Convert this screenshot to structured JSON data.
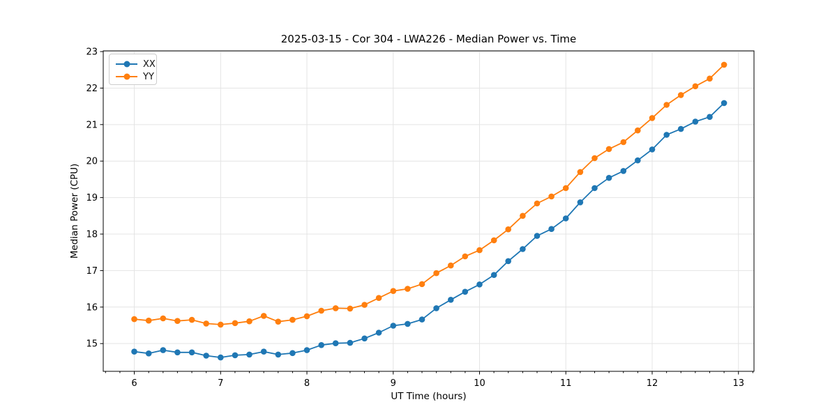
{
  "figure": {
    "background": "#ffffff"
  },
  "chart_data": {
    "type": "line",
    "title": "2025-03-15 - Cor 304 - LWA226 - Median Power vs. Time",
    "xlabel": "UT Time (hours)",
    "ylabel": "Median Power (CPU)",
    "xlim": [
      5.64,
      13.18
    ],
    "ylim": [
      14.24,
      23.02
    ],
    "x_ticks": [
      6,
      7,
      8,
      9,
      10,
      11,
      12,
      13
    ],
    "y_ticks": [
      15,
      16,
      17,
      18,
      19,
      20,
      21,
      22,
      23
    ],
    "x_minor_tick_step_minutes": 10,
    "grid": true,
    "grid_color": "#e4e4e4",
    "axis_color": "#000000",
    "legend_position": "upper-left",
    "x": [
      6.0,
      6.167,
      6.333,
      6.5,
      6.667,
      6.833,
      7.0,
      7.167,
      7.333,
      7.5,
      7.667,
      7.833,
      8.0,
      8.167,
      8.333,
      8.5,
      8.667,
      8.833,
      9.0,
      9.167,
      9.333,
      9.5,
      9.667,
      9.833,
      10.0,
      10.167,
      10.333,
      10.5,
      10.667,
      10.833,
      11.0,
      11.167,
      11.333,
      11.5,
      11.667,
      11.833,
      12.0,
      12.167,
      12.333,
      12.5,
      12.667,
      12.833
    ],
    "series": [
      {
        "name": "XX",
        "color": "#1f77b4",
        "values": [
          14.78,
          14.73,
          14.82,
          14.76,
          14.76,
          14.67,
          14.62,
          14.68,
          14.7,
          14.78,
          14.7,
          14.74,
          14.82,
          14.96,
          15.01,
          15.02,
          15.14,
          15.3,
          15.49,
          15.54,
          15.66,
          15.97,
          16.2,
          16.42,
          16.62,
          16.88,
          17.26,
          17.59,
          17.95,
          18.14,
          18.43,
          18.87,
          19.26,
          19.54,
          19.73,
          20.02,
          20.32,
          20.72,
          20.88,
          21.08,
          21.21,
          21.59
        ]
      },
      {
        "name": "YY",
        "color": "#ff7f0e",
        "values": [
          15.67,
          15.63,
          15.69,
          15.62,
          15.65,
          15.55,
          15.52,
          15.56,
          15.61,
          15.76,
          15.6,
          15.65,
          15.75,
          15.9,
          15.97,
          15.96,
          16.06,
          16.25,
          16.44,
          16.5,
          16.63,
          16.93,
          17.14,
          17.39,
          17.56,
          17.83,
          18.13,
          18.5,
          18.84,
          19.03,
          19.26,
          19.7,
          20.08,
          20.33,
          20.52,
          20.84,
          21.18,
          21.54,
          21.81,
          22.05,
          22.26,
          22.64
        ]
      }
    ]
  }
}
